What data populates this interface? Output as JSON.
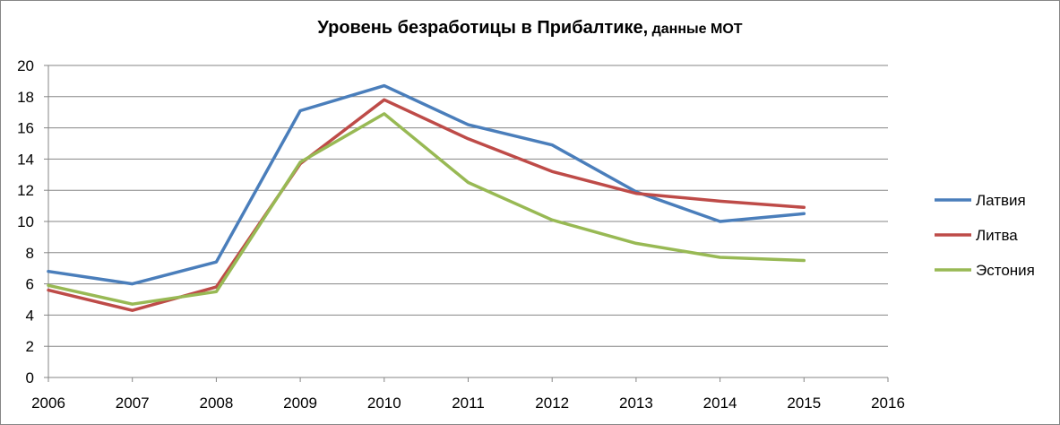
{
  "chart_data": {
    "type": "line",
    "title": "Уровень безработицы в Прибалтике,",
    "subtitle": "данные МОТ",
    "xlabel": "",
    "ylabel": "",
    "xlim": [
      2006,
      2016
    ],
    "ylim": [
      0,
      20
    ],
    "x_ticks": [
      "2006",
      "2007",
      "2008",
      "2009",
      "2010",
      "2011",
      "2012",
      "2013",
      "2014",
      "2015",
      "2016"
    ],
    "y_ticks": [
      "0",
      "2",
      "4",
      "6",
      "8",
      "10",
      "12",
      "14",
      "16",
      "18",
      "20"
    ],
    "grid": "horizontal",
    "legend_position": "right",
    "x": [
      2006,
      2007,
      2008,
      2009,
      2010,
      2011,
      2012,
      2013,
      2014,
      2015
    ],
    "series": [
      {
        "name": "Латвия",
        "color": "#4A7EBB",
        "values": [
          6.8,
          6.0,
          7.4,
          17.1,
          18.7,
          16.2,
          14.9,
          11.9,
          10.0,
          10.5
        ]
      },
      {
        "name": "Литва",
        "color": "#BE4B48",
        "values": [
          5.6,
          4.3,
          5.8,
          13.7,
          17.8,
          15.3,
          13.2,
          11.8,
          11.3,
          10.9
        ]
      },
      {
        "name": "Эстония",
        "color": "#98B954",
        "values": [
          5.9,
          4.7,
          5.5,
          13.8,
          16.9,
          12.5,
          10.1,
          8.6,
          7.7,
          7.5
        ]
      }
    ]
  }
}
